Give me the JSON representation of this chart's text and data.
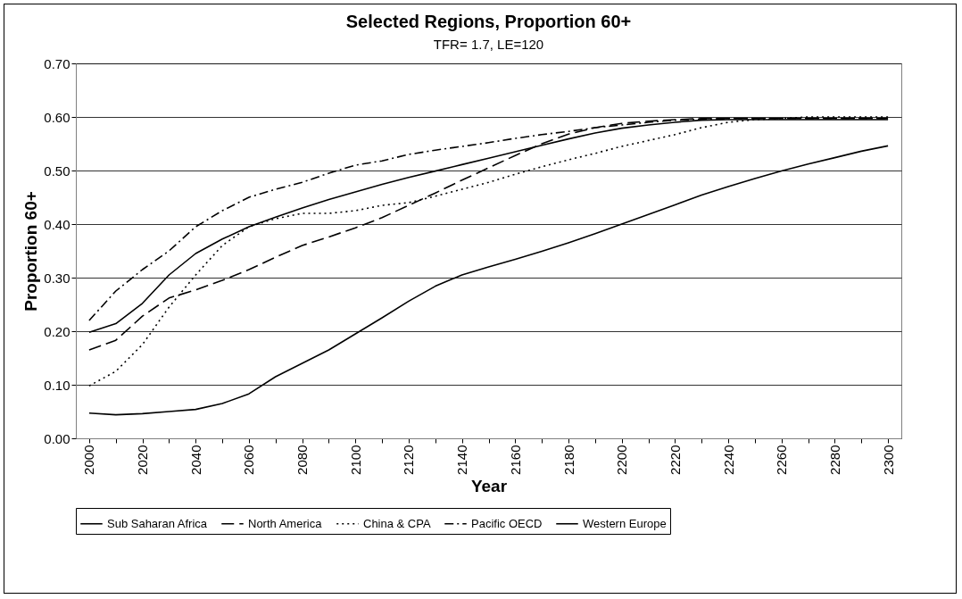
{
  "chart_data": {
    "type": "line",
    "title": "Selected Regions,  Proportion 60+",
    "subtitle": "TFR= 1.7, LE=120",
    "xlabel": "Year",
    "ylabel": "Proportion 60+",
    "categories": [
      "2000",
      null,
      "2020",
      null,
      "2040",
      null,
      "2060",
      null,
      "2080",
      null,
      "2100",
      null,
      "2120",
      null,
      "2140",
      null,
      "2160",
      null,
      "2180",
      null,
      "2200",
      null,
      "2220",
      null,
      "2240",
      null,
      "2260",
      null,
      "2280",
      null,
      "2300"
    ],
    "series": [
      {
        "name": "Sub Saharan Africa",
        "color": "#000000",
        "line_style": "solid",
        "values": [
          0.047,
          0.044,
          0.046,
          0.05,
          0.054,
          0.065,
          0.083,
          0.115,
          0.14,
          0.165,
          0.195,
          0.225,
          0.256,
          0.284,
          0.305,
          0.32,
          0.334,
          0.349,
          0.365,
          0.382,
          0.4,
          0.418,
          0.436,
          0.454,
          0.47,
          0.485,
          0.499,
          0.512,
          0.524,
          0.536,
          0.546
        ]
      },
      {
        "name": "North America",
        "color": "#000000",
        "line_style": "dashed",
        "values": [
          0.165,
          0.183,
          0.228,
          0.262,
          0.277,
          0.295,
          0.315,
          0.338,
          0.36,
          0.376,
          0.393,
          0.412,
          0.435,
          0.458,
          0.482,
          0.505,
          0.528,
          0.55,
          0.568,
          0.58,
          0.588,
          0.592,
          0.595,
          0.597,
          0.597,
          0.597,
          0.597,
          0.597,
          0.597,
          0.597,
          0.597
        ]
      },
      {
        "name": "China & CPA",
        "color": "#000000",
        "line_style": "dotted",
        "values": [
          0.098,
          0.125,
          0.175,
          0.245,
          0.305,
          0.36,
          0.395,
          0.41,
          0.42,
          0.42,
          0.425,
          0.435,
          0.44,
          0.452,
          0.465,
          0.478,
          0.493,
          0.507,
          0.52,
          0.532,
          0.545,
          0.556,
          0.567,
          0.58,
          0.59,
          0.595,
          0.597,
          0.6,
          0.6,
          0.6,
          0.6
        ]
      },
      {
        "name": "Pacific OECD",
        "color": "#000000",
        "line_style": "dashdot",
        "values": [
          0.22,
          0.275,
          0.315,
          0.35,
          0.395,
          0.425,
          0.45,
          0.465,
          0.478,
          0.495,
          0.51,
          0.518,
          0.53,
          0.538,
          0.545,
          0.552,
          0.56,
          0.567,
          0.573,
          0.58,
          0.585,
          0.59,
          0.594,
          0.596,
          0.597,
          0.597,
          0.597,
          0.597,
          0.597,
          0.597,
          0.597
        ]
      },
      {
        "name": "Western Europe",
        "color": "#000000",
        "line_style": "solid",
        "values": [
          0.198,
          0.214,
          0.252,
          0.305,
          0.345,
          0.372,
          0.395,
          0.413,
          0.43,
          0.446,
          0.46,
          0.474,
          0.487,
          0.499,
          0.511,
          0.523,
          0.535,
          0.547,
          0.559,
          0.57,
          0.579,
          0.585,
          0.59,
          0.594,
          0.595,
          0.595,
          0.595,
          0.595,
          0.595,
          0.595,
          0.595
        ]
      }
    ],
    "ylim": [
      0,
      0.7
    ],
    "yticks": [
      {
        "value": 0,
        "label": "0.00"
      },
      {
        "value": 0.1,
        "label": "0.10"
      },
      {
        "value": 0.2,
        "label": "0.20"
      },
      {
        "value": 0.3,
        "label": "0.30"
      },
      {
        "value": 0.4,
        "label": "0.40"
      },
      {
        "value": 0.5,
        "label": "0.50"
      },
      {
        "value": 0.6,
        "label": "0.60"
      },
      {
        "value": 0.7,
        "label": "0.70"
      }
    ],
    "grid": "y",
    "legend": "bottom",
    "marker": "none"
  }
}
